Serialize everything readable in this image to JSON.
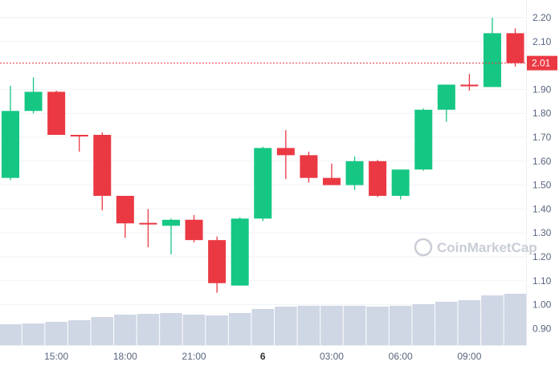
{
  "chart_data": {
    "type": "candlestick",
    "title": "",
    "xlabel": "",
    "ylabel": "",
    "ylim": [
      0.82,
      2.24
    ],
    "grid": true,
    "y_ticks": [
      "2.20",
      "2.10",
      "1.90",
      "1.80",
      "1.70",
      "1.60",
      "1.50",
      "1.40",
      "1.30",
      "1.20",
      "1.10",
      "1.00",
      "0.90"
    ],
    "x_ticks": [
      {
        "label": "15:00",
        "index": 2,
        "bold": false
      },
      {
        "label": "18:00",
        "index": 5,
        "bold": false
      },
      {
        "label": "21:00",
        "index": 8,
        "bold": false
      },
      {
        "label": "6",
        "index": 11,
        "bold": true
      },
      {
        "label": "03:00",
        "index": 14,
        "bold": false
      },
      {
        "label": "06:00",
        "index": 17,
        "bold": false
      },
      {
        "label": "09:00",
        "index": 20,
        "bold": false
      }
    ],
    "current_price": {
      "label": "2.01",
      "value": 2.01
    },
    "colors": {
      "up": "#16c784",
      "down": "#ea3943",
      "volume": "#cfd6e4",
      "grid": "#f0f2f5",
      "axis_text": "#58667e"
    },
    "candles": [
      {
        "o": 1.53,
        "h": 1.915,
        "l": 1.52,
        "c": 1.81
      },
      {
        "o": 1.81,
        "h": 1.95,
        "l": 1.8,
        "c": 1.89
      },
      {
        "o": 1.89,
        "h": 1.895,
        "l": 1.71,
        "c": 1.71
      },
      {
        "o": 1.71,
        "h": 1.71,
        "l": 1.64,
        "c": 1.708
      },
      {
        "o": 1.71,
        "h": 1.72,
        "l": 1.395,
        "c": 1.455
      },
      {
        "o": 1.455,
        "h": 1.455,
        "l": 1.28,
        "c": 1.34
      },
      {
        "o": 1.342,
        "h": 1.4,
        "l": 1.24,
        "c": 1.336
      },
      {
        "o": 1.33,
        "h": 1.36,
        "l": 1.21,
        "c": 1.355
      },
      {
        "o": 1.355,
        "h": 1.375,
        "l": 1.26,
        "c": 1.27
      },
      {
        "o": 1.27,
        "h": 1.285,
        "l": 1.05,
        "c": 1.09
      },
      {
        "o": 1.08,
        "h": 1.365,
        "l": 1.08,
        "c": 1.36
      },
      {
        "o": 1.36,
        "h": 1.66,
        "l": 1.35,
        "c": 1.655
      },
      {
        "o": 1.655,
        "h": 1.73,
        "l": 1.525,
        "c": 1.625
      },
      {
        "o": 1.625,
        "h": 1.64,
        "l": 1.51,
        "c": 1.53
      },
      {
        "o": 1.53,
        "h": 1.59,
        "l": 1.5,
        "c": 1.5
      },
      {
        "o": 1.5,
        "h": 1.62,
        "l": 1.48,
        "c": 1.6
      },
      {
        "o": 1.6,
        "h": 1.605,
        "l": 1.45,
        "c": 1.455
      },
      {
        "o": 1.455,
        "h": 1.565,
        "l": 1.44,
        "c": 1.565
      },
      {
        "o": 1.565,
        "h": 1.82,
        "l": 1.56,
        "c": 1.815
      },
      {
        "o": 1.815,
        "h": 1.92,
        "l": 1.765,
        "c": 1.92
      },
      {
        "o": 1.92,
        "h": 1.965,
        "l": 1.895,
        "c": 1.913
      },
      {
        "o": 1.91,
        "h": 2.2,
        "l": 1.91,
        "c": 2.135
      },
      {
        "o": 2.135,
        "h": 2.155,
        "l": 1.995,
        "c": 2.01
      }
    ],
    "volume_relative": [
      26,
      27,
      29,
      31,
      35,
      38,
      39,
      40,
      38,
      37,
      40,
      45,
      48,
      49,
      49,
      49,
      48,
      49,
      51,
      54,
      56,
      62,
      64
    ]
  },
  "watermark": "CoinMarketCap"
}
